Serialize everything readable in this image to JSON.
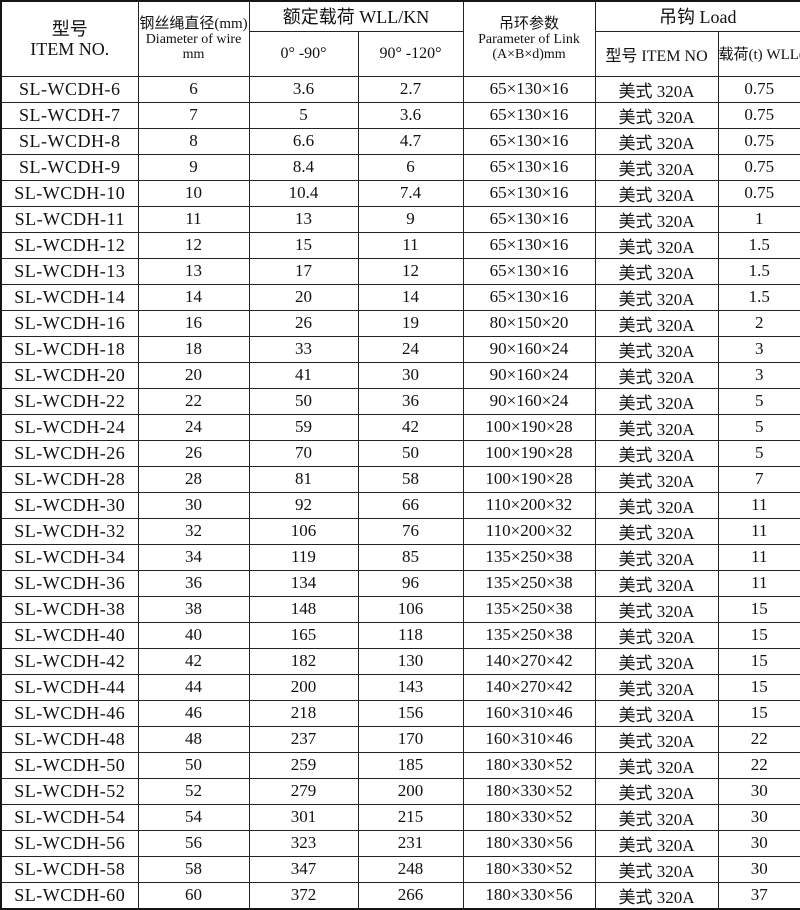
{
  "table": {
    "header": {
      "item_no": {
        "line1": "型号",
        "line2": "ITEM NO."
      },
      "diameter": {
        "line1": "钢丝绳直径(mm)",
        "line2": "Diameter of wire",
        "line3": "mm"
      },
      "wll_group": "额定载荷 WLL/KN",
      "wll_0_90": "0° -90°",
      "wll_90_120": "90° -120°",
      "link": {
        "line1": "吊环参数",
        "line2": "Parameter of Link",
        "line3": "(A×B×d)mm"
      },
      "hook_group": "吊钩 Load",
      "hook_model": "型号 ITEM NO",
      "hook_wll": "载荷(t) WLL(T)"
    },
    "column_keys": [
      "item_no",
      "diameter_mm",
      "wll_0_90_kn",
      "wll_90_120_kn",
      "link_param_mm",
      "hook_model",
      "hook_wll_t"
    ],
    "rows": [
      [
        "SL-WCDH-6",
        "6",
        "3.6",
        "2.7",
        "65×130×16",
        "美式 320A",
        "0.75"
      ],
      [
        "SL-WCDH-7",
        "7",
        "5",
        "3.6",
        "65×130×16",
        "美式 320A",
        "0.75"
      ],
      [
        "SL-WCDH-8",
        "8",
        "6.6",
        "4.7",
        "65×130×16",
        "美式 320A",
        "0.75"
      ],
      [
        "SL-WCDH-9",
        "9",
        "8.4",
        "6",
        "65×130×16",
        "美式 320A",
        "0.75"
      ],
      [
        "SL-WCDH-10",
        "10",
        "10.4",
        "7.4",
        "65×130×16",
        "美式 320A",
        "0.75"
      ],
      [
        "SL-WCDH-11",
        "11",
        "13",
        "9",
        "65×130×16",
        "美式 320A",
        "1"
      ],
      [
        "SL-WCDH-12",
        "12",
        "15",
        "11",
        "65×130×16",
        "美式 320A",
        "1.5"
      ],
      [
        "SL-WCDH-13",
        "13",
        "17",
        "12",
        "65×130×16",
        "美式 320A",
        "1.5"
      ],
      [
        "SL-WCDH-14",
        "14",
        "20",
        "14",
        "65×130×16",
        "美式 320A",
        "1.5"
      ],
      [
        "SL-WCDH-16",
        "16",
        "26",
        "19",
        "80×150×20",
        "美式 320A",
        "2"
      ],
      [
        "SL-WCDH-18",
        "18",
        "33",
        "24",
        "90×160×24",
        "美式 320A",
        "3"
      ],
      [
        "SL-WCDH-20",
        "20",
        "41",
        "30",
        "90×160×24",
        "美式 320A",
        "3"
      ],
      [
        "SL-WCDH-22",
        "22",
        "50",
        "36",
        "90×160×24",
        "美式 320A",
        "5"
      ],
      [
        "SL-WCDH-24",
        "24",
        "59",
        "42",
        "100×190×28",
        "美式 320A",
        "5"
      ],
      [
        "SL-WCDH-26",
        "26",
        "70",
        "50",
        "100×190×28",
        "美式 320A",
        "5"
      ],
      [
        "SL-WCDH-28",
        "28",
        "81",
        "58",
        "100×190×28",
        "美式 320A",
        "7"
      ],
      [
        "SL-WCDH-30",
        "30",
        "92",
        "66",
        "110×200×32",
        "美式 320A",
        "11"
      ],
      [
        "SL-WCDH-32",
        "32",
        "106",
        "76",
        "110×200×32",
        "美式 320A",
        "11"
      ],
      [
        "SL-WCDH-34",
        "34",
        "119",
        "85",
        "135×250×38",
        "美式 320A",
        "11"
      ],
      [
        "SL-WCDH-36",
        "36",
        "134",
        "96",
        "135×250×38",
        "美式 320A",
        "11"
      ],
      [
        "SL-WCDH-38",
        "38",
        "148",
        "106",
        "135×250×38",
        "美式 320A",
        "15"
      ],
      [
        "SL-WCDH-40",
        "40",
        "165",
        "118",
        "135×250×38",
        "美式 320A",
        "15"
      ],
      [
        "SL-WCDH-42",
        "42",
        "182",
        "130",
        "140×270×42",
        "美式 320A",
        "15"
      ],
      [
        "SL-WCDH-44",
        "44",
        "200",
        "143",
        "140×270×42",
        "美式 320A",
        "15"
      ],
      [
        "SL-WCDH-46",
        "46",
        "218",
        "156",
        "160×310×46",
        "美式 320A",
        "15"
      ],
      [
        "SL-WCDH-48",
        "48",
        "237",
        "170",
        "160×310×46",
        "美式 320A",
        "22"
      ],
      [
        "SL-WCDH-50",
        "50",
        "259",
        "185",
        "180×330×52",
        "美式 320A",
        "22"
      ],
      [
        "SL-WCDH-52",
        "52",
        "279",
        "200",
        "180×330×52",
        "美式 320A",
        "30"
      ],
      [
        "SL-WCDH-54",
        "54",
        "301",
        "215",
        "180×330×52",
        "美式 320A",
        "30"
      ],
      [
        "SL-WCDH-56",
        "56",
        "323",
        "231",
        "180×330×56",
        "美式 320A",
        "30"
      ],
      [
        "SL-WCDH-58",
        "58",
        "347",
        "248",
        "180×330×52",
        "美式 320A",
        "30"
      ],
      [
        "SL-WCDH-60",
        "60",
        "372",
        "266",
        "180×330×56",
        "美式 320A",
        "37"
      ]
    ]
  },
  "colors": {
    "background": "#ffffff",
    "border": "#232323",
    "text": "#111111"
  }
}
